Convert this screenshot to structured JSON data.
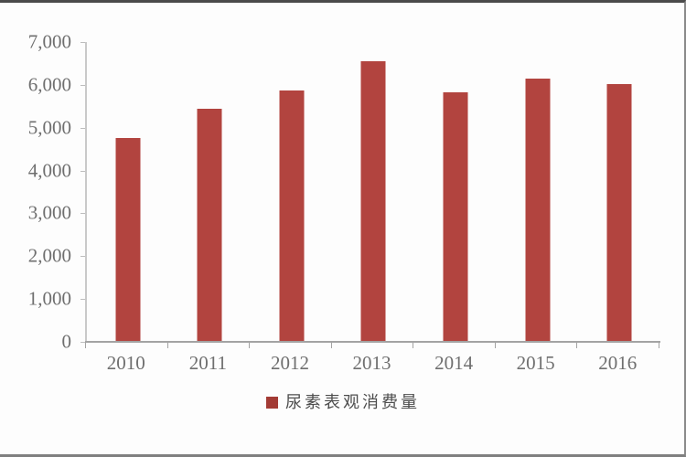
{
  "chart_data": {
    "type": "bar",
    "title": "",
    "categories": [
      "2010",
      "2011",
      "2012",
      "2013",
      "2014",
      "2015",
      "2016"
    ],
    "values": [
      4760,
      5440,
      5870,
      6560,
      5830,
      6150,
      6020
    ],
    "series_name": "尿素表观消费量",
    "ylim": [
      0,
      7000
    ],
    "ytick_step": 1000,
    "yticks": [
      "0",
      "1,000",
      "2,000",
      "3,000",
      "4,000",
      "5,000",
      "6,000",
      "7,000"
    ],
    "xlabel": "",
    "ylabel": "",
    "grid": false,
    "legend_position": "bottom",
    "bar_color": "#b2443f",
    "legend_marker_color": "#a33b35"
  },
  "legend": {
    "label": "尿素表观消费量"
  }
}
